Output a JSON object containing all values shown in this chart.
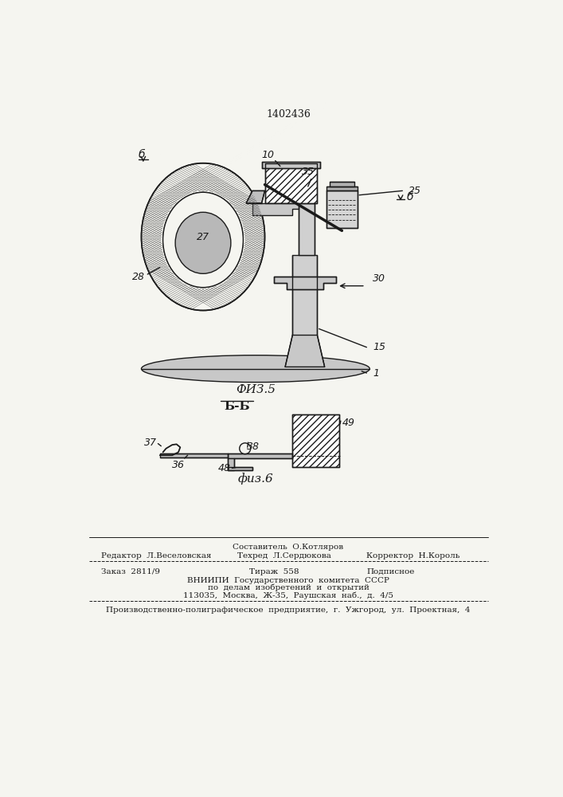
{
  "patent_number": "1402436",
  "background_color": "#f5f5f0",
  "line_color": "#1a1a1a",
  "footer_line1": "Составитель  О.Котляров",
  "footer_line2_left": "Редактор  Л.Веселовская",
  "footer_line2_mid": "Техред  Л.Сердюкова",
  "footer_line2_right": "Корректор  Н.Король",
  "footer_line3_left": "Заказ  2811/9",
  "footer_line3_mid": "Тираж  558",
  "footer_line3_right": "Подписное",
  "footer_line4": "ВНИИПИ  Государственного  комитета  СССР",
  "footer_line5": "по  делам  изобретений  и  открытий",
  "footer_line6": "113035,  Москва,  Ж-35,  Раушская  наб.,  д.  4/5",
  "footer_line7": "Производственно-полиграфическое  предприятие,  г.  Ужгород,  ул.  Проектная,  4"
}
